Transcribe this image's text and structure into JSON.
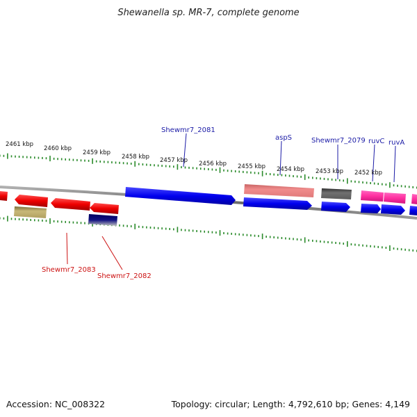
{
  "title": "Shewanella sp. MR-7, complete genome",
  "footer": {
    "accession": "Accession: NC_008322",
    "summary": "Topology: circular; Length: 4,792,610 bp; Genes: 4,149"
  },
  "colors": {
    "backbone": "#808080",
    "tick": "#2a8a2a",
    "forward_label": "#1a1aa6",
    "reverse_label": "#cc1111",
    "forward_gene": "#0000ee",
    "reverse_gene": "#ee0000"
  },
  "ticks": [
    {
      "label": "2461 kbp"
    },
    {
      "label": "2460 kbp"
    },
    {
      "label": "2459 kbp"
    },
    {
      "label": "2458 kbp"
    },
    {
      "label": "2457 kbp"
    },
    {
      "label": "2456 kbp"
    },
    {
      "label": "2455 kbp"
    },
    {
      "label": "2454 kbp"
    },
    {
      "label": "2453 kbp"
    },
    {
      "label": "2452 kbp"
    }
  ],
  "gene_labels": {
    "forward": [
      {
        "text": "Shewmr7_2081"
      },
      {
        "text": "aspS"
      },
      {
        "text": "Shewmr7_2079"
      },
      {
        "text": "ruvC"
      },
      {
        "text": "ruvA"
      }
    ],
    "reverse": [
      {
        "text": "Shewmr7_2083"
      },
      {
        "text": "Shewmr7_2082"
      }
    ]
  }
}
